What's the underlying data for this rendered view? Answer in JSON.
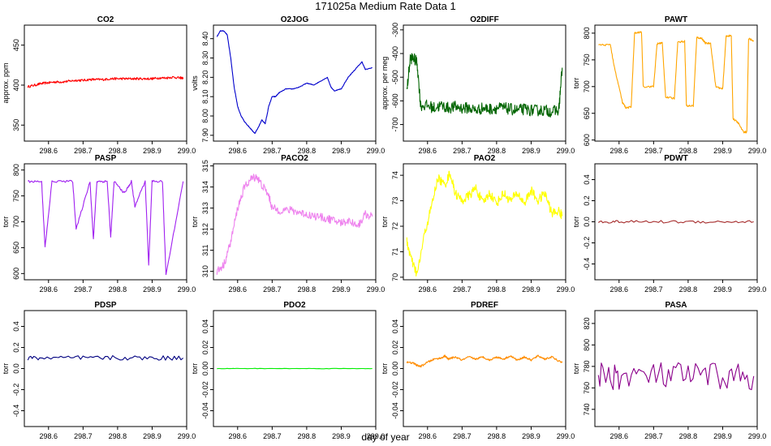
{
  "page": {
    "title": "171025a   Medium Rate Data 1",
    "xlabel": "day of year"
  },
  "chart_data": [
    {
      "type": "line",
      "title": "CO2",
      "ylabel": "approx. ppm",
      "color": "#ff0000",
      "xlim": [
        298.53,
        299.0
      ],
      "ylim": [
        330,
        475
      ],
      "yticks": [
        350,
        400,
        450
      ],
      "xticks": [
        298.6,
        298.7,
        298.8,
        298.9,
        299.0
      ],
      "series": [
        {
          "x": [
            298.54,
            298.56,
            298.58,
            298.6,
            298.62,
            298.64,
            298.66,
            298.68,
            298.7,
            298.72,
            298.74,
            298.76,
            298.78,
            298.8,
            298.82,
            298.84,
            298.86,
            298.88,
            298.9,
            298.92,
            298.94,
            298.96,
            298.98,
            298.99
          ],
          "y": [
            398,
            400,
            402,
            403,
            404,
            404,
            405,
            406,
            406,
            407,
            407,
            407,
            408,
            408,
            408,
            408,
            408,
            408,
            408,
            409,
            409,
            410,
            409,
            409
          ]
        }
      ]
    },
    {
      "type": "line",
      "title": "O2JOG",
      "ylabel": "volts",
      "color": "#0000cc",
      "xlim": [
        298.53,
        299.0
      ],
      "ylim": [
        7.87,
        8.47
      ],
      "yticks": [
        7.9,
        8.0,
        8.1,
        8.2,
        8.3,
        8.4
      ],
      "xticks": [
        298.6,
        298.7,
        298.8,
        298.9,
        299.0
      ],
      "series": [
        {
          "x": [
            298.54,
            298.55,
            298.56,
            298.57,
            298.58,
            298.59,
            298.6,
            298.61,
            298.62,
            298.63,
            298.64,
            298.65,
            298.66,
            298.67,
            298.68,
            298.69,
            298.7,
            298.71,
            298.72,
            298.74,
            298.76,
            298.78,
            298.8,
            298.82,
            298.84,
            298.86,
            298.87,
            298.88,
            298.9,
            298.92,
            298.94,
            298.96,
            298.97,
            298.99
          ],
          "y": [
            8.41,
            8.44,
            8.44,
            8.42,
            8.3,
            8.15,
            8.05,
            8.0,
            7.97,
            7.95,
            7.93,
            7.91,
            7.94,
            7.98,
            7.96,
            8.05,
            8.1,
            8.1,
            8.12,
            8.14,
            8.14,
            8.15,
            8.17,
            8.16,
            8.18,
            8.2,
            8.15,
            8.13,
            8.14,
            8.2,
            8.24,
            8.28,
            8.24,
            8.25
          ]
        }
      ]
    },
    {
      "type": "line",
      "title": "O2DIFF",
      "ylabel": "approx. per meg",
      "color": "#006400",
      "xlim": [
        298.53,
        299.0
      ],
      "ylim": [
        -770,
        -280
      ],
      "yticks": [
        -700,
        -600,
        -500,
        -400,
        -300
      ],
      "xticks": [
        298.6,
        298.7,
        298.8,
        298.9,
        299.0
      ],
      "series": [
        {
          "x": [
            298.54,
            298.55,
            298.56,
            298.57,
            298.58,
            298.6,
            298.62,
            298.64,
            298.66,
            298.68,
            298.7,
            298.72,
            298.74,
            298.76,
            298.78,
            298.8,
            298.82,
            298.84,
            298.86,
            298.88,
            298.9,
            298.92,
            298.94,
            298.96,
            298.98,
            298.99
          ],
          "y": [
            -560,
            -420,
            -420,
            -440,
            -620,
            -620,
            -630,
            -620,
            -630,
            -625,
            -630,
            -630,
            -640,
            -630,
            -635,
            -630,
            -630,
            -635,
            -640,
            -635,
            -640,
            -640,
            -640,
            -645,
            -640,
            -460
          ]
        }
      ]
    },
    {
      "type": "line",
      "title": "PAWT",
      "ylabel": "torr",
      "color": "#ffa500",
      "xlim": [
        298.53,
        299.0
      ],
      "ylim": [
        598,
        815
      ],
      "yticks": [
        600,
        650,
        700,
        750,
        800
      ],
      "xticks": [
        298.6,
        298.7,
        298.8,
        298.9,
        299.0
      ],
      "series": [
        {
          "x": [
            298.54,
            298.575,
            298.585,
            298.61,
            298.62,
            298.635,
            298.645,
            298.665,
            298.67,
            298.7,
            298.71,
            298.725,
            298.735,
            298.76,
            298.77,
            298.79,
            298.795,
            298.815,
            298.825,
            298.84,
            298.85,
            298.865,
            298.88,
            298.9,
            298.91,
            298.925,
            298.93,
            298.945,
            298.96,
            298.97,
            298.975,
            298.99
          ],
          "y": [
            778,
            778,
            740,
            670,
            660,
            662,
            800,
            802,
            700,
            700,
            780,
            782,
            680,
            678,
            783,
            785,
            664,
            664,
            792,
            790,
            781,
            781,
            700,
            695,
            795,
            795,
            640,
            632,
            615,
            615,
            790,
            785
          ]
        }
      ]
    },
    {
      "type": "line",
      "title": "PASP",
      "ylabel": "torr",
      "color": "#a020f0",
      "xlim": [
        298.53,
        299.0
      ],
      "ylim": [
        588,
        812
      ],
      "yticks": [
        600,
        650,
        700,
        750,
        800
      ],
      "xticks": [
        298.6,
        298.7,
        298.8,
        298.9,
        299.0
      ],
      "series": [
        {
          "x": [
            298.54,
            298.58,
            298.59,
            298.61,
            298.67,
            298.68,
            298.72,
            298.73,
            298.74,
            298.77,
            298.78,
            298.79,
            298.82,
            298.84,
            298.85,
            298.88,
            298.89,
            298.9,
            298.93,
            298.94,
            298.99
          ],
          "y": [
            778,
            778,
            650,
            778,
            778,
            685,
            778,
            665,
            778,
            778,
            670,
            778,
            755,
            778,
            730,
            778,
            615,
            778,
            778,
            598,
            778
          ]
        }
      ]
    },
    {
      "type": "line",
      "title": "PACO2",
      "ylabel": "torr",
      "color": "#ee82ee",
      "xlim": [
        298.53,
        299.0
      ],
      "ylim": [
        309.6,
        315.1
      ],
      "yticks": [
        310,
        311,
        312,
        313,
        314,
        315
      ],
      "xticks": [
        298.6,
        298.7,
        298.8,
        298.9,
        299.0
      ],
      "series": [
        {
          "x": [
            298.54,
            298.56,
            298.58,
            298.6,
            298.62,
            298.64,
            298.655,
            298.67,
            298.69,
            298.7,
            298.72,
            298.75,
            298.78,
            298.8,
            298.83,
            298.86,
            298.88,
            298.9,
            298.92,
            298.95,
            298.97,
            298.99
          ],
          "y": [
            310.0,
            310.3,
            311.4,
            313.0,
            314.0,
            314.4,
            314.5,
            314.1,
            313.6,
            313.0,
            312.9,
            312.9,
            312.8,
            312.7,
            312.6,
            312.5,
            312.4,
            312.3,
            312.4,
            312.2,
            312.7,
            312.6
          ]
        }
      ]
    },
    {
      "type": "line",
      "title": "PAO2",
      "ylabel": "torr",
      "color": "#ffff00",
      "xlim": [
        298.53,
        299.0
      ],
      "ylim": [
        69.9,
        74.45
      ],
      "yticks": [
        70,
        71,
        72,
        73,
        74
      ],
      "xticks": [
        298.6,
        298.7,
        298.8,
        298.9,
        299.0
      ],
      "series": [
        {
          "x": [
            298.54,
            298.555,
            298.57,
            298.59,
            298.61,
            298.63,
            298.65,
            298.665,
            298.68,
            298.7,
            298.72,
            298.74,
            298.76,
            298.78,
            298.8,
            298.82,
            298.84,
            298.86,
            298.88,
            298.9,
            298.92,
            298.94,
            298.96,
            298.98,
            298.99
          ],
          "y": [
            71.4,
            70.6,
            70.1,
            71.6,
            72.7,
            73.9,
            73.6,
            74.1,
            73.3,
            73.0,
            73.2,
            73.5,
            72.9,
            73.3,
            72.9,
            73.3,
            73.0,
            73.3,
            72.9,
            73.4,
            73.0,
            73.3,
            72.5,
            72.6,
            72.4
          ]
        }
      ]
    },
    {
      "type": "line",
      "title": "PDWT",
      "ylabel": "torr",
      "color": "#a52a2a",
      "xlim": [
        298.53,
        299.0
      ],
      "ylim": [
        -0.55,
        0.55
      ],
      "yticks": [
        -0.4,
        -0.2,
        0.0,
        0.2,
        0.4
      ],
      "xticks": [
        298.6,
        298.7,
        298.8,
        298.9,
        299.0
      ],
      "series": [
        {
          "x": [
            298.54,
            298.6,
            298.7,
            298.8,
            298.9,
            298.99
          ],
          "y": [
            0.0,
            0.0,
            0.0,
            0.0,
            0.0,
            0.0
          ]
        }
      ]
    },
    {
      "type": "line",
      "title": "PDSP",
      "ylabel": "torr",
      "color": "#000080",
      "xlim": [
        298.53,
        299.0
      ],
      "ylim": [
        -0.55,
        0.55
      ],
      "yticks": [
        -0.4,
        -0.2,
        0.0,
        0.2,
        0.4
      ],
      "xticks": [
        298.6,
        298.7,
        298.8,
        298.9,
        299.0
      ],
      "series": [
        {
          "x": [
            298.54,
            298.6,
            298.7,
            298.8,
            298.9,
            298.99
          ],
          "y": [
            0.1,
            0.1,
            0.1,
            0.1,
            0.1,
            0.1
          ]
        }
      ]
    },
    {
      "type": "line",
      "title": "PDO2",
      "ylabel": "torr",
      "color": "#00ee00",
      "xlim": [
        298.53,
        299.0
      ],
      "ylim": [
        -0.055,
        0.055
      ],
      "yticks": [
        -0.04,
        -0.02,
        0.0,
        0.02,
        0.04
      ],
      "xticks": [
        298.6,
        298.7,
        298.8,
        298.9,
        299.0
      ],
      "series": [
        {
          "x": [
            298.54,
            298.6,
            298.7,
            298.8,
            298.9,
            298.99
          ],
          "y": [
            0.0,
            0.0,
            0.0,
            0.0,
            0.0,
            0.0
          ]
        }
      ]
    },
    {
      "type": "line",
      "title": "PDREF",
      "ylabel": "torr",
      "color": "#ff8c00",
      "xlim": [
        298.53,
        299.0
      ],
      "ylim": [
        -0.055,
        0.055
      ],
      "yticks": [
        -0.04,
        -0.02,
        0.0,
        0.02,
        0.04
      ],
      "xticks": [
        298.6,
        298.7,
        298.8,
        298.9,
        299.0
      ],
      "series": [
        {
          "x": [
            298.54,
            298.56,
            298.57,
            298.58,
            298.6,
            298.62,
            298.64,
            298.65,
            298.66,
            298.68,
            298.7,
            298.72,
            298.74,
            298.76,
            298.78,
            298.8,
            298.82,
            298.84,
            298.86,
            298.88,
            298.9,
            298.92,
            298.94,
            298.96,
            298.98,
            298.99
          ],
          "y": [
            0.006,
            0.005,
            0.003,
            0.002,
            0.006,
            0.009,
            0.01,
            0.012,
            0.009,
            0.011,
            0.008,
            0.011,
            0.009,
            0.011,
            0.008,
            0.011,
            0.009,
            0.012,
            0.008,
            0.011,
            0.008,
            0.012,
            0.009,
            0.011,
            0.007,
            0.006
          ]
        }
      ]
    },
    {
      "type": "line",
      "title": "PASA",
      "ylabel": "torr",
      "color": "#8b008b",
      "xlim": [
        298.53,
        299.0
      ],
      "ylim": [
        724,
        832
      ],
      "yticks": [
        740,
        760,
        780,
        800,
        820
      ],
      "xticks": [
        298.6,
        298.7,
        298.8,
        298.9,
        299.0
      ],
      "series": [
        {
          "x": [
            298.54,
            298.6,
            298.7,
            298.8,
            298.9,
            298.99
          ],
          "y": [
            771,
            771,
            771,
            771,
            771,
            771
          ]
        }
      ]
    }
  ]
}
